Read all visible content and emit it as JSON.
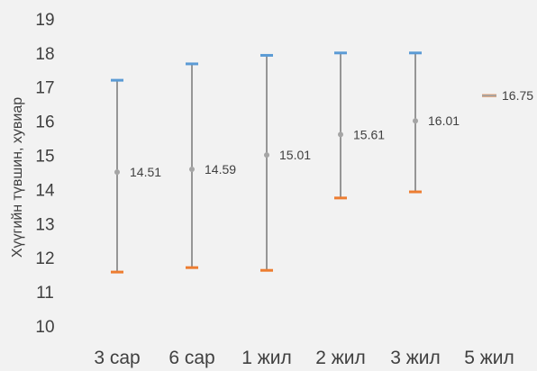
{
  "chart_data": {
    "type": "error-bar",
    "title": "",
    "xlabel": "",
    "ylabel": "Хүүгийн түвшин, хувиар",
    "ylim": [
      10,
      19
    ],
    "yticks": [
      10,
      11,
      12,
      13,
      14,
      15,
      16,
      17,
      18,
      19
    ],
    "grid": false,
    "legend": "none",
    "categories": [
      "3 сар",
      "6 сар",
      "1 жил",
      "2 жил",
      "3 жил",
      "5 жил"
    ],
    "series": [
      {
        "role": "high",
        "values": [
          17.2,
          17.68,
          17.93,
          18.0,
          18.0,
          16.75
        ],
        "color": "#5b9bd5"
      },
      {
        "role": "low",
        "values": [
          11.58,
          11.71,
          11.63,
          13.75,
          13.93,
          16.75
        ],
        "color": "#ed7d31"
      },
      {
        "role": "mean",
        "values": [
          14.51,
          14.59,
          15.01,
          15.61,
          16.01,
          16.75
        ],
        "labels": [
          "14.51",
          "14.59",
          "15.01",
          "15.61",
          "16.01",
          "16.75"
        ],
        "color": "#a5a5a5"
      }
    ]
  }
}
